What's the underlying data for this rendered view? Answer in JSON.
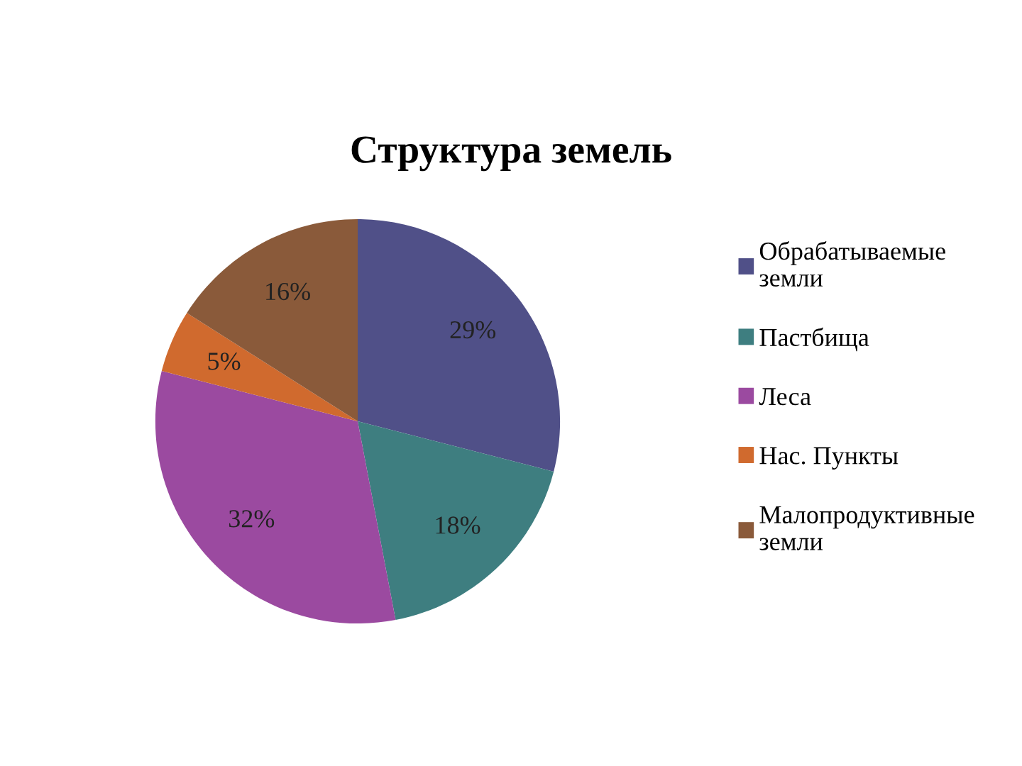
{
  "chart_data": {
    "type": "pie",
    "title": "Структура земель",
    "categories": [
      "Обрабатываемые земли",
      "Пастбища",
      "Леса",
      "Нас. Пункты",
      "Малопродуктивные земли"
    ],
    "values": [
      29,
      18,
      32,
      5,
      16
    ],
    "colors": [
      "#505088",
      "#3e7e80",
      "#9b4aa0",
      "#d06a2e",
      "#8a5a3a"
    ],
    "value_labels": [
      "29%",
      "18%",
      "32%",
      "5%",
      "16%"
    ],
    "legend": "right"
  }
}
